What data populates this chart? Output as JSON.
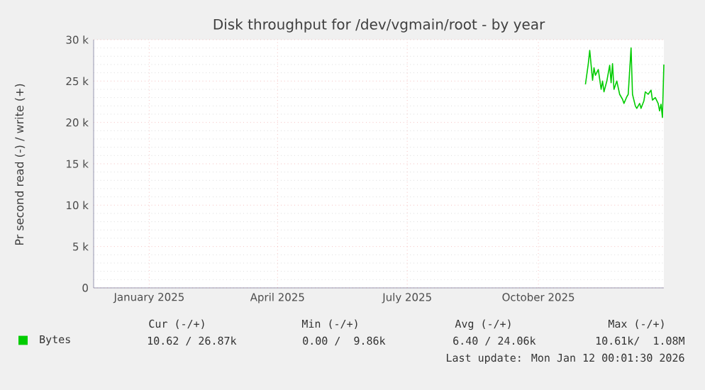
{
  "chart_data": {
    "type": "line",
    "title": "Disk throughput for /dev/vgmain/root - by year",
    "ylabel": "Pr second read (-) / write (+)",
    "xlim": [
      "2024-12-08",
      "2026-01-12"
    ],
    "xticks": [
      {
        "value": "2025-01-16",
        "label": "January 2025"
      },
      {
        "value": "2025-04-16",
        "label": "April 2025"
      },
      {
        "value": "2025-07-16",
        "label": "July 2025"
      },
      {
        "value": "2025-10-16",
        "label": "October 2025"
      }
    ],
    "ylim": [
      0,
      30000
    ],
    "yticks": [
      {
        "value": 0,
        "label": "0"
      },
      {
        "value": 5000,
        "label": "5 k"
      },
      {
        "value": 10000,
        "label": "10 k"
      },
      {
        "value": 15000,
        "label": "15 k"
      },
      {
        "value": 20000,
        "label": "20 k"
      },
      {
        "value": 25000,
        "label": "25 k"
      },
      {
        "value": 30000,
        "label": "30 k"
      }
    ],
    "grid": true,
    "legend": "bottom",
    "x": [
      "2025-11-18",
      "2025-11-20",
      "2025-11-21",
      "2025-11-23",
      "2025-11-24",
      "2025-11-25",
      "2025-11-27",
      "2025-11-29",
      "2025-11-30",
      "2025-12-01",
      "2025-12-03",
      "2025-12-05",
      "2025-12-06",
      "2025-12-07",
      "2025-12-08",
      "2025-12-10",
      "2025-12-12",
      "2025-12-14",
      "2025-12-15",
      "2025-12-17",
      "2025-12-18",
      "2025-12-20",
      "2025-12-21",
      "2025-12-23",
      "2025-12-24",
      "2025-12-26",
      "2025-12-27",
      "2025-12-29",
      "2025-12-30",
      "2026-01-01",
      "2026-01-03",
      "2026-01-04",
      "2026-01-06",
      "2026-01-08",
      "2026-01-09",
      "2026-01-10",
      "2026-01-11",
      "2026-01-12"
    ],
    "series": [
      {
        "name": "Bytes",
        "color": "#00cc00",
        "values": [
          24600,
          27100,
          28700,
          25100,
          26600,
          25700,
          26400,
          24000,
          25000,
          23700,
          25000,
          26900,
          24800,
          27100,
          24000,
          25000,
          23400,
          22800,
          22300,
          23100,
          23400,
          29000,
          23400,
          22000,
          21700,
          22300,
          21700,
          22600,
          23700,
          23400,
          23900,
          22700,
          23000,
          22300,
          21400,
          22200,
          20600,
          27000
        ]
      }
    ],
    "annotations": [
      "Cur (-/+)",
      "Min (-/+)",
      "Avg (-/+)",
      "Max (-/+)",
      "10.62 / 26.87k",
      "0.00 /  9.86k",
      "6.40 / 24.06k",
      "10.61k/  1.08M",
      "Last update: Mon Jan 12 00:01:30 2026"
    ]
  }
}
